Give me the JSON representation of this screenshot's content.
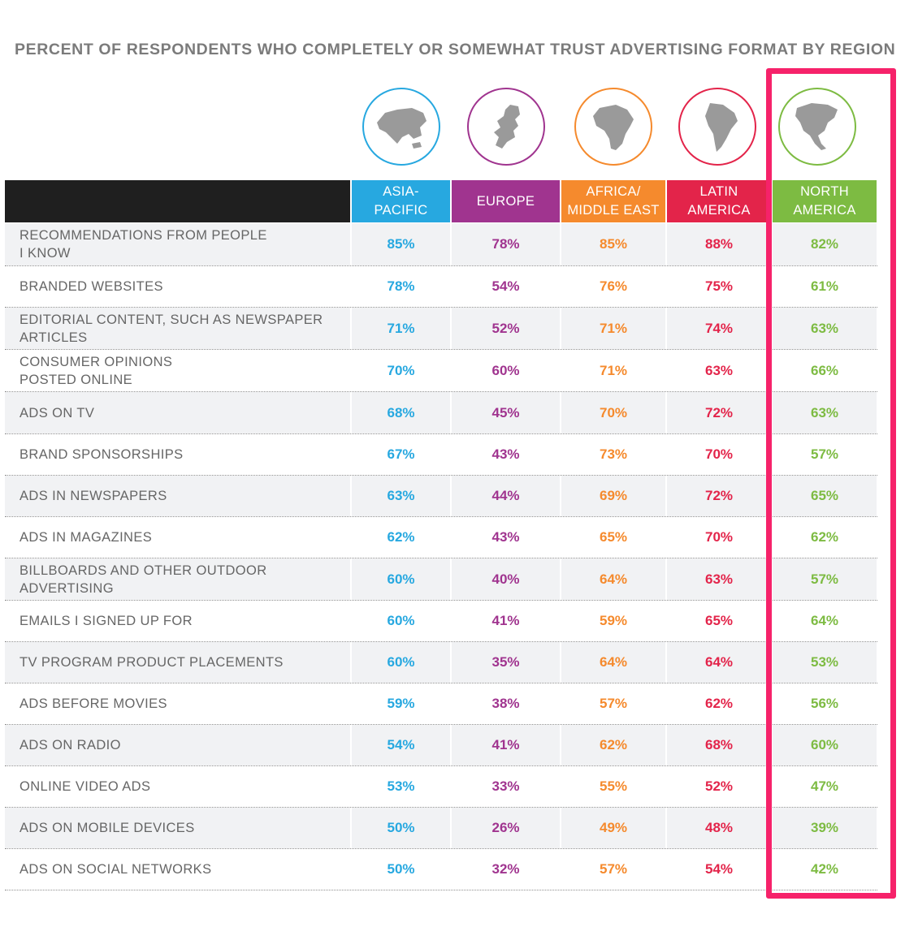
{
  "title": "PERCENT OF RESPONDENTS WHO COMPLETELY OR SOMEWHAT TRUST ADVERTISING FORMAT BY REGION",
  "colors": {
    "asia_pacific": "#27a8e0",
    "europe": "#a0348f",
    "africa_middle_east": "#f58a2d",
    "latin_america": "#e3244a",
    "north_america": "#7dbb42",
    "highlight": "#f6226a"
  },
  "regions": [
    {
      "key": "asia_pacific",
      "label": "ASIA-\nPACIFIC",
      "icon": "asia-map-icon"
    },
    {
      "key": "europe",
      "label": "EUROPE",
      "icon": "europe-map-icon"
    },
    {
      "key": "africa_middle_east",
      "label": "AFRICA/\nMIDDLE EAST",
      "icon": "africa-map-icon"
    },
    {
      "key": "latin_america",
      "label": "LATIN\nAMERICA",
      "icon": "south-america-map-icon"
    },
    {
      "key": "north_america",
      "label": "NORTH\nAMERICA",
      "icon": "north-america-map-icon"
    }
  ],
  "chart_data": {
    "type": "table",
    "title": "PERCENT OF RESPONDENTS WHO COMPLETELY OR SOMEWHAT TRUST ADVERTISING FORMAT BY REGION",
    "columns": [
      "ASIA-PACIFIC",
      "EUROPE",
      "AFRICA/MIDDLE EAST",
      "LATIN AMERICA",
      "NORTH AMERICA"
    ],
    "highlighted_column": "NORTH AMERICA",
    "rows": [
      {
        "label": "RECOMMENDATIONS FROM PEOPLE\nI KNOW",
        "values": [
          "85%",
          "78%",
          "85%",
          "88%",
          "82%"
        ]
      },
      {
        "label": "BRANDED WEBSITES",
        "values": [
          "78%",
          "54%",
          "76%",
          "75%",
          "61%"
        ]
      },
      {
        "label": "EDITORIAL CONTENT, SUCH AS NEWSPAPER\nARTICLES",
        "values": [
          "71%",
          "52%",
          "71%",
          "74%",
          "63%"
        ]
      },
      {
        "label": "CONSUMER OPINIONS\nPOSTED ONLINE",
        "values": [
          "70%",
          "60%",
          "71%",
          "63%",
          "66%"
        ]
      },
      {
        "label": "ADS ON TV",
        "values": [
          "68%",
          "45%",
          "70%",
          "72%",
          "63%"
        ]
      },
      {
        "label": "BRAND SPONSORSHIPS",
        "values": [
          "67%",
          "43%",
          "73%",
          "70%",
          "57%"
        ]
      },
      {
        "label": "ADS IN NEWSPAPERS",
        "values": [
          "63%",
          "44%",
          "69%",
          "72%",
          "65%"
        ]
      },
      {
        "label": "ADS IN MAGAZINES",
        "values": [
          "62%",
          "43%",
          "65%",
          "70%",
          "62%"
        ]
      },
      {
        "label": "BILLBOARDS AND OTHER OUTDOOR\nADVERTISING",
        "values": [
          "60%",
          "40%",
          "64%",
          "63%",
          "57%"
        ]
      },
      {
        "label": "EMAILS I SIGNED UP FOR",
        "values": [
          "60%",
          "41%",
          "59%",
          "65%",
          "64%"
        ]
      },
      {
        "label": "TV PROGRAM PRODUCT PLACEMENTS",
        "values": [
          "60%",
          "35%",
          "64%",
          "64%",
          "53%"
        ]
      },
      {
        "label": "ADS BEFORE MOVIES",
        "values": [
          "59%",
          "38%",
          "57%",
          "62%",
          "56%"
        ]
      },
      {
        "label": "ADS ON RADIO",
        "values": [
          "54%",
          "41%",
          "62%",
          "68%",
          "60%"
        ]
      },
      {
        "label": "ONLINE VIDEO ADS",
        "values": [
          "53%",
          "33%",
          "55%",
          "52%",
          "47%"
        ]
      },
      {
        "label": "ADS ON MOBILE DEVICES",
        "values": [
          "50%",
          "26%",
          "49%",
          "48%",
          "39%"
        ]
      },
      {
        "label": "ADS ON SOCIAL NETWORKS",
        "values": [
          "50%",
          "32%",
          "57%",
          "54%",
          "42%"
        ]
      }
    ]
  }
}
